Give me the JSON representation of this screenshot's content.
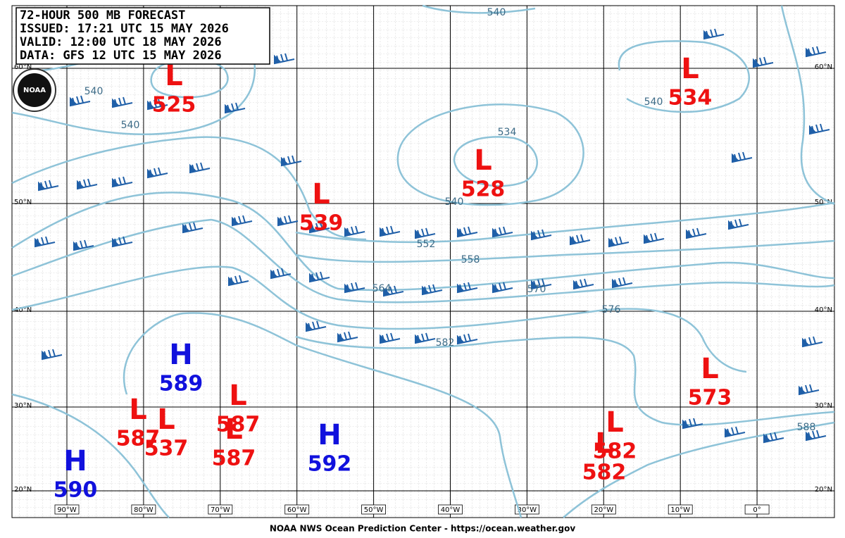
{
  "header": {
    "lines": [
      "72-HOUR 500 MB FORECAST",
      "ISSUED: 17:21 UTC 15 MAY 2026",
      "VALID:  12:00 UTC 18 MAY 2026",
      "DATA:  GFS 12 UTC 15 MAY 2026"
    ]
  },
  "logo": "NOAA",
  "colors": {
    "L": "#ee1111",
    "H": "#1111dd",
    "contour": "#8ec3d8",
    "barb": "#1f5fa8"
  },
  "latitudes": [
    "60°N",
    "50°N",
    "40°N",
    "30°N",
    "20°N"
  ],
  "longitudes": [
    "90°W",
    "80°W",
    "70°W",
    "60°W",
    "50°W",
    "40°W",
    "30°W",
    "20°W",
    "10°W",
    "0°"
  ],
  "centers": [
    {
      "type": "L",
      "value": 525
    },
    {
      "type": "L",
      "value": 534
    },
    {
      "type": "L",
      "value": 528
    },
    {
      "type": "L",
      "value": 539
    },
    {
      "type": "H",
      "value": 589
    },
    {
      "type": "L",
      "value": 587
    },
    {
      "type": "L",
      "value": 587
    },
    {
      "type": "L",
      "value": 537
    },
    {
      "type": "L",
      "value": 587
    },
    {
      "type": "H",
      "value": 592
    },
    {
      "type": "H",
      "value": 590
    },
    {
      "type": "L",
      "value": 573
    },
    {
      "type": "L",
      "value": 582
    },
    {
      "type": "L",
      "value": 582
    }
  ],
  "contour_labels": [
    540,
    540,
    540,
    534,
    540,
    552,
    558,
    564,
    570,
    576,
    582,
    540,
    588
  ],
  "footer": "NOAA NWS Ocean Prediction Center - https://ocean.weather.gov"
}
